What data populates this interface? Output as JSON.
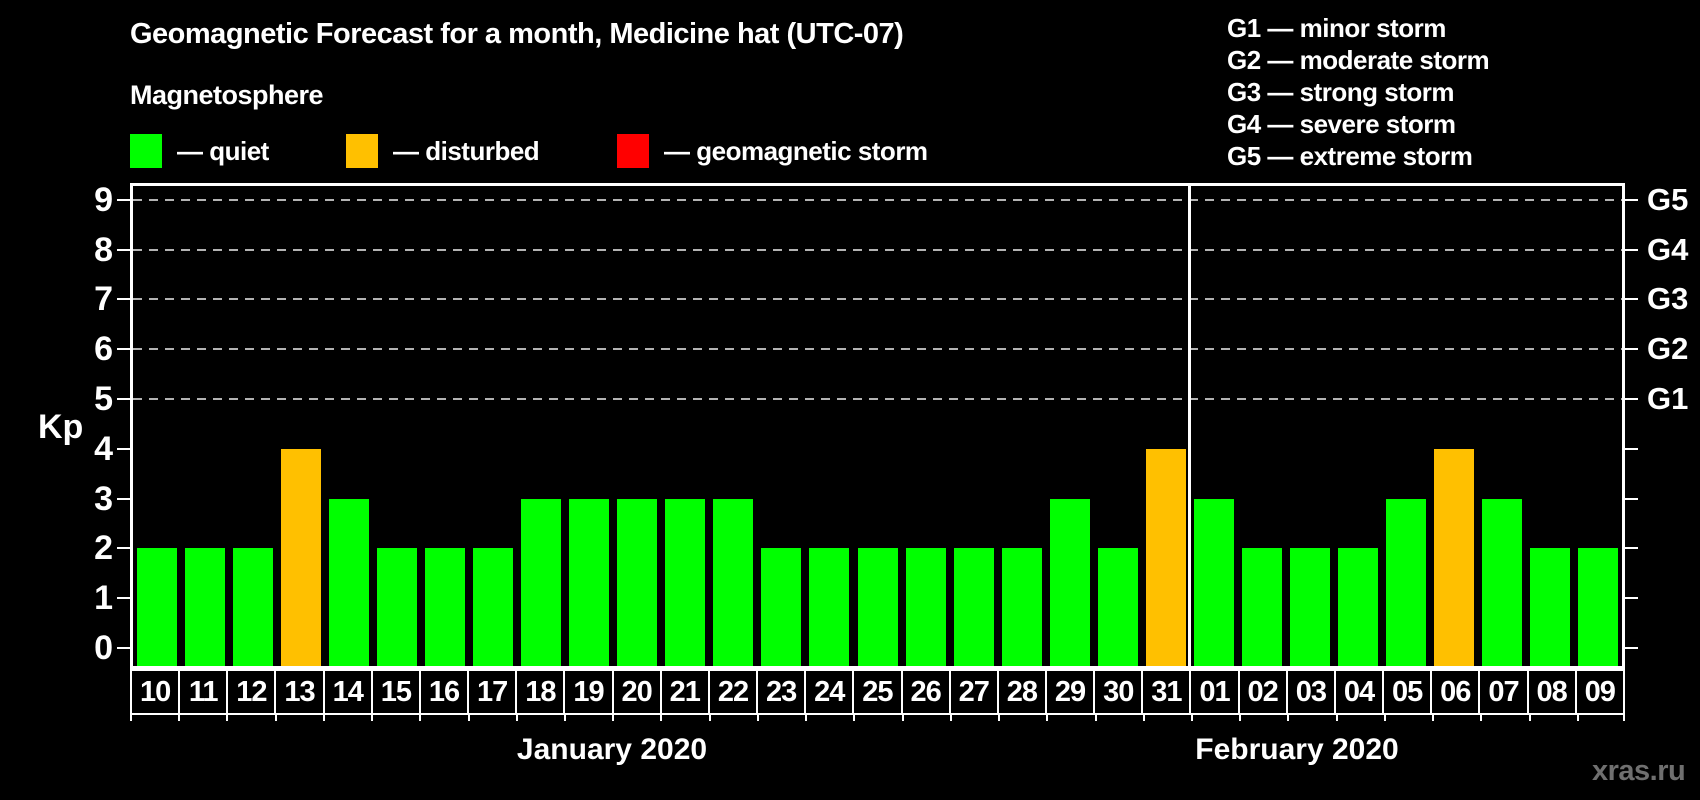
{
  "title": "Geomagnetic Forecast for a month, Medicine hat (UTC-07)",
  "subtitle": "Magnetosphere",
  "legend": {
    "items": [
      {
        "key": "quiet",
        "label": "— quiet",
        "color": "#00ff00"
      },
      {
        "key": "disturbed",
        "label": "— disturbed",
        "color": "#ffc000"
      },
      {
        "key": "storm",
        "label": "— geomagnetic storm",
        "color": "#ff0000"
      }
    ]
  },
  "g_legend": [
    "G1 — minor storm",
    "G2 — moderate storm",
    "G3 — strong storm",
    "G4 — severe storm",
    "G5 — extreme storm"
  ],
  "y_axis": {
    "label": "Kp",
    "ticks": [
      0,
      1,
      2,
      3,
      4,
      5,
      6,
      7,
      8,
      9
    ]
  },
  "right_axis": {
    "labels": [
      "G1",
      "G2",
      "G3",
      "G4",
      "G5"
    ],
    "kp_positions": [
      5,
      6,
      7,
      8,
      9
    ]
  },
  "watermark": "xras.ru",
  "chart_data": {
    "type": "bar",
    "title": "Geomagnetic Forecast for a month, Medicine hat (UTC-07)",
    "xlabel": "",
    "ylabel": "Kp",
    "ylim": [
      0,
      9.4
    ],
    "grid": "dashed horizontal at Kp 5-9 (G1-G5)",
    "legend_position": "top-left",
    "colors": {
      "quiet": "#00ff00",
      "disturbed": "#ffc000",
      "storm": "#ff0000"
    },
    "gridlines_kp": [
      5,
      6,
      7,
      8,
      9
    ],
    "months": [
      {
        "label": "January 2020",
        "days": [
          {
            "day": "10",
            "kp": 2,
            "status": "quiet"
          },
          {
            "day": "11",
            "kp": 2,
            "status": "quiet"
          },
          {
            "day": "12",
            "kp": 2,
            "status": "quiet"
          },
          {
            "day": "13",
            "kp": 4,
            "status": "disturbed"
          },
          {
            "day": "14",
            "kp": 3,
            "status": "quiet"
          },
          {
            "day": "15",
            "kp": 2,
            "status": "quiet"
          },
          {
            "day": "16",
            "kp": 2,
            "status": "quiet"
          },
          {
            "day": "17",
            "kp": 2,
            "status": "quiet"
          },
          {
            "day": "18",
            "kp": 3,
            "status": "quiet"
          },
          {
            "day": "19",
            "kp": 3,
            "status": "quiet"
          },
          {
            "day": "20",
            "kp": 3,
            "status": "quiet"
          },
          {
            "day": "21",
            "kp": 3,
            "status": "quiet"
          },
          {
            "day": "22",
            "kp": 3,
            "status": "quiet"
          },
          {
            "day": "23",
            "kp": 2,
            "status": "quiet"
          },
          {
            "day": "24",
            "kp": 2,
            "status": "quiet"
          },
          {
            "day": "25",
            "kp": 2,
            "status": "quiet"
          },
          {
            "day": "26",
            "kp": 2,
            "status": "quiet"
          },
          {
            "day": "27",
            "kp": 2,
            "status": "quiet"
          },
          {
            "day": "28",
            "kp": 2,
            "status": "quiet"
          },
          {
            "day": "29",
            "kp": 3,
            "status": "quiet"
          },
          {
            "day": "30",
            "kp": 2,
            "status": "quiet"
          },
          {
            "day": "31",
            "kp": 4,
            "status": "disturbed"
          }
        ]
      },
      {
        "label": "February 2020",
        "days": [
          {
            "day": "01",
            "kp": 3,
            "status": "quiet"
          },
          {
            "day": "02",
            "kp": 2,
            "status": "quiet"
          },
          {
            "day": "03",
            "kp": 2,
            "status": "quiet"
          },
          {
            "day": "04",
            "kp": 2,
            "status": "quiet"
          },
          {
            "day": "05",
            "kp": 3,
            "status": "quiet"
          },
          {
            "day": "06",
            "kp": 4,
            "status": "disturbed"
          },
          {
            "day": "07",
            "kp": 3,
            "status": "quiet"
          },
          {
            "day": "08",
            "kp": 2,
            "status": "quiet"
          },
          {
            "day": "09",
            "kp": 2,
            "status": "quiet"
          }
        ]
      }
    ]
  }
}
